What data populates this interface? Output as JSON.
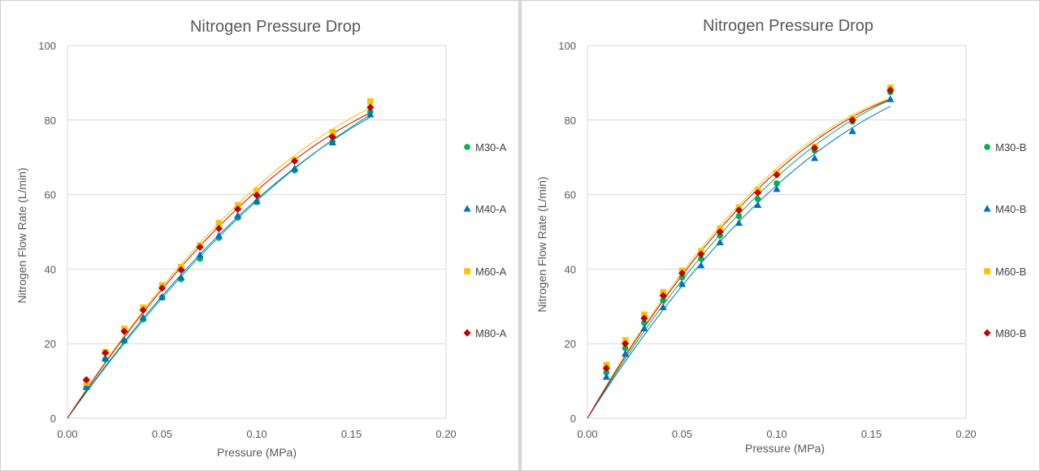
{
  "charts": [
    {
      "title": "Nitrogen Pressure Drop",
      "xlabel": "Pressure (MPa)",
      "ylabel": "Nitrogen Flow Rate (L/min)",
      "xticks": [
        "0.00",
        "0.05",
        "0.10",
        "0.15",
        "0.20"
      ],
      "yticks": [
        "0",
        "20",
        "40",
        "60",
        "80",
        "100"
      ]
    },
    {
      "title": "Nitrogen Pressure Drop",
      "xlabel": "Pressure (MPa)",
      "ylabel": "Nitrogen Flow Rate (L/min)",
      "xticks": [
        "0.00",
        "0.05",
        "0.10",
        "0.15",
        "0.20"
      ],
      "yticks": [
        "0",
        "20",
        "40",
        "60",
        "80",
        "100"
      ]
    }
  ],
  "chart_data": [
    {
      "type": "scatter",
      "title": "Nitrogen Pressure Drop",
      "xlabel": "Pressure (MPa)",
      "ylabel": "Nitrogen Flow Rate (L/min)",
      "xlim": [
        0,
        0.2
      ],
      "ylim": [
        0,
        100
      ],
      "grid": "horizontal",
      "legend": "right",
      "trendlines": true,
      "x": [
        0.01,
        0.02,
        0.03,
        0.04,
        0.05,
        0.06,
        0.07,
        0.08,
        0.09,
        0.1,
        0.12,
        0.14,
        0.16
      ],
      "series": [
        {
          "name": "M30-A",
          "marker": "circle",
          "color": "#00b050",
          "values": [
            8.2,
            15.8,
            20.7,
            26.5,
            32.4,
            37.3,
            42.8,
            48.4,
            53.8,
            58.0,
            66.5,
            74.2,
            82.2
          ]
        },
        {
          "name": "M40-A",
          "marker": "triangle",
          "color": "#0070c0",
          "values": [
            8.4,
            16.0,
            21.0,
            27.0,
            32.5,
            37.8,
            43.8,
            49.0,
            54.4,
            58.2,
            67.0,
            74.0,
            81.5
          ]
        },
        {
          "name": "M60-A",
          "marker": "square",
          "color": "#ffc000",
          "values": [
            9.5,
            17.8,
            24.0,
            29.7,
            35.7,
            40.6,
            46.4,
            52.4,
            57.2,
            61.0,
            69.3,
            76.8,
            85.0
          ]
        },
        {
          "name": "M80-A",
          "marker": "diamond",
          "color": "#c00000",
          "values": [
            10.3,
            17.5,
            23.3,
            29.0,
            34.9,
            39.8,
            45.9,
            50.9,
            56.1,
            59.8,
            69.0,
            75.5,
            83.4
          ]
        }
      ]
    },
    {
      "type": "scatter",
      "title": "Nitrogen Pressure Drop",
      "xlabel": "Pressure (MPa)",
      "ylabel": "Nitrogen Flow Rate (L/min)",
      "xlim": [
        0,
        0.2
      ],
      "ylim": [
        0,
        100
      ],
      "grid": "horizontal",
      "legend": "right",
      "trendlines": true,
      "x": [
        0.01,
        0.02,
        0.03,
        0.04,
        0.05,
        0.06,
        0.07,
        0.08,
        0.09,
        0.1,
        0.12,
        0.14,
        0.16
      ],
      "series": [
        {
          "name": "M30-B",
          "marker": "circle",
          "color": "#00b050",
          "values": [
            12.3,
            18.8,
            25.6,
            31.6,
            37.8,
            42.8,
            49.0,
            54.2,
            58.8,
            63.0,
            71.8,
            79.6,
            87.5
          ]
        },
        {
          "name": "M40-B",
          "marker": "triangle",
          "color": "#0070c0",
          "values": [
            11.1,
            17.3,
            24.1,
            29.8,
            36.0,
            41.0,
            47.2,
            52.4,
            57.2,
            61.5,
            69.8,
            77.0,
            85.6
          ]
        },
        {
          "name": "M60-B",
          "marker": "square",
          "color": "#ffc000",
          "values": [
            14.3,
            20.9,
            27.8,
            33.8,
            39.6,
            44.8,
            50.9,
            56.5,
            61.2,
            65.8,
            72.8,
            80.5,
            88.7
          ]
        },
        {
          "name": "M80-B",
          "marker": "diamond",
          "color": "#c00000",
          "values": [
            13.4,
            20.0,
            26.8,
            32.9,
            38.9,
            44.0,
            50.0,
            55.8,
            60.5,
            65.3,
            72.5,
            80.0,
            88.0
          ]
        }
      ]
    }
  ]
}
